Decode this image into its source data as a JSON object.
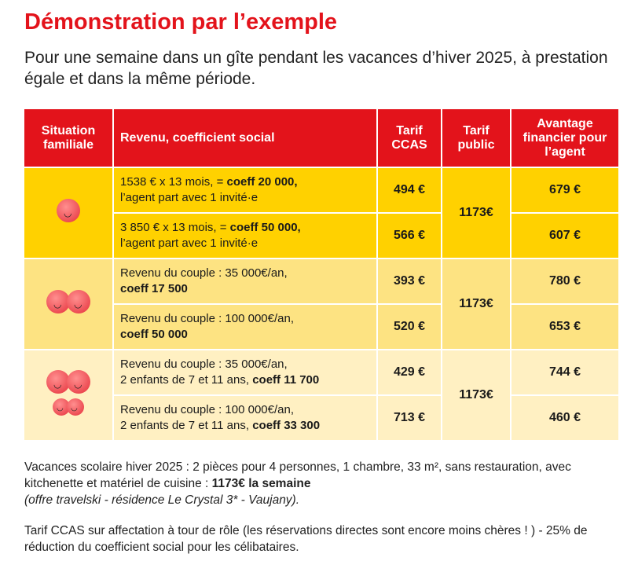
{
  "title": "Démonstration par l’exemple",
  "subtitle": "Pour une semaine dans un gîte pendant les vacances d’hiver 2025, à prestation égale et dans la même période.",
  "headers": [
    "Situation familiale",
    "Revenu, coefficient social",
    "Tarif CCAS",
    "Tarif public",
    "Avantage financier pour l’agent"
  ],
  "groups": [
    {
      "icon": "single-person-icon",
      "tarif_public": "1173€",
      "rows": [
        {
          "revenu": "1538 € x 13 mois, = ",
          "coeff": "coeff 20 000,",
          "suffix": "l’agent part avec 1 invité·e",
          "ccas": "494 €",
          "avantage": "679 €"
        },
        {
          "revenu": "3 850 € x 13 mois, = ",
          "coeff": "coeff 50 000,",
          "suffix": "l’agent part avec 1 invité·e",
          "ccas": "566 €",
          "avantage": "607 €"
        }
      ]
    },
    {
      "icon": "couple-icon",
      "tarif_public": "1173€",
      "rows": [
        {
          "revenu": "Revenu du couple : 35 000€/an,",
          "coeff": "coeff 17 500",
          "ccas": "393 €",
          "avantage": "780 €"
        },
        {
          "revenu": "Revenu du couple : 100 000€/an,",
          "coeff": "coeff 50 000",
          "ccas": "520 €",
          "avantage": "653 €"
        }
      ]
    },
    {
      "icon": "family-icon",
      "tarif_public": "1173€",
      "rows": [
        {
          "revenu": "Revenu du couple : 35 000€/an,",
          "suffix": "2 enfants de 7 et 11 ans, ",
          "coeff": "coeff 11 700",
          "ccas": "429 €",
          "avantage": "744 €"
        },
        {
          "revenu": "Revenu du couple : 100 000€/an,",
          "suffix": "2 enfants de 7 et 11 ans, ",
          "coeff": "coeff 33 300",
          "ccas": "713 €",
          "avantage": "460 €"
        }
      ]
    }
  ],
  "note1": {
    "text": "Vacances scolaire hiver 2025 : 2 pièces pour 4 personnes, 1 chambre, 33 m², sans restauration, avec kitchenette et matériel de cuisine : ",
    "bold": "1173€ la semaine",
    "italic": "(offre travelski - résidence Le Crystal 3* - Vaujany)."
  },
  "note2": "Tarif CCAS sur affectation à tour de rôle (les réservations directes sont encore moins chères ! ) - 25% de réduction du coefficient social pour les célibataires.",
  "colors": {
    "red": "#e3131b",
    "yellow1": "#ffd100",
    "yellow2": "#fde382",
    "yellow3": "#fff0c2"
  }
}
